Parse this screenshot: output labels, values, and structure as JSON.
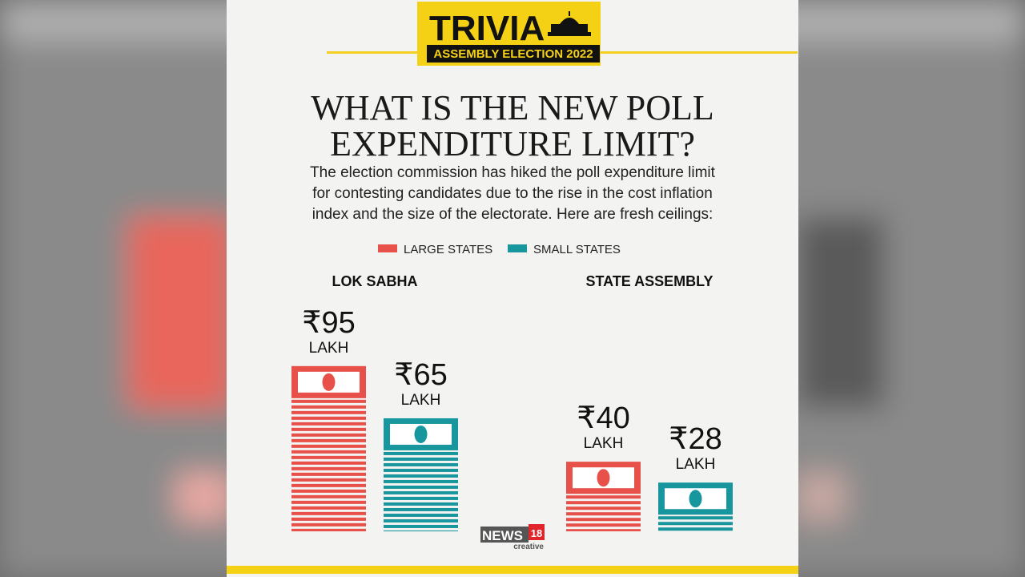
{
  "header": {
    "title": "TRIVIA",
    "subtitle": "ASSEMBLY ELECTION 2022"
  },
  "chart_data": {
    "type": "bar",
    "title": "WHAT IS THE NEW POLL EXPENDITURE LIMIT?",
    "subtitle": "The election commission has hiked the poll expenditure limit for contesting candidates due to the rise in the cost inflation index and the size of the electorate. Here are fresh ceilings:",
    "categories": [
      "LOK SABHA",
      "STATE ASSEMBLY"
    ],
    "series": [
      {
        "name": "LARGE STATES",
        "color": "#e8504a",
        "values": [
          95,
          40
        ],
        "value_labels": [
          "₹95 LAKH",
          "₹40 LAKH"
        ]
      },
      {
        "name": "SMALL STATES",
        "color": "#17979d",
        "values": [
          65,
          28
        ],
        "value_labels": [
          "₹65 LAKH",
          "₹28 LAKH"
        ]
      }
    ],
    "legend": "top"
  },
  "brand": {
    "name": "NEWS",
    "number": "18",
    "tag": "creative"
  }
}
